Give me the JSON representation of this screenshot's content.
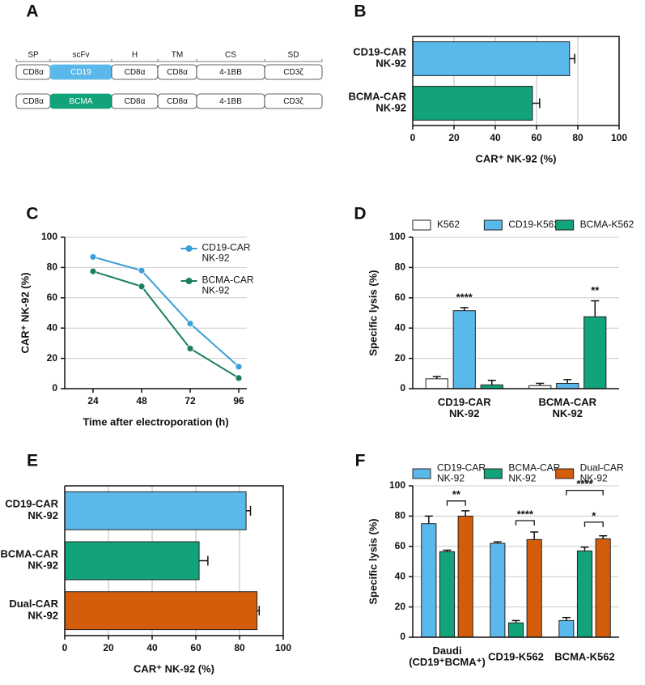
{
  "diagram": {
    "panel": "A",
    "headers": [
      "SP",
      "scFv",
      "H",
      "TM",
      "CS",
      "SD"
    ],
    "rows": [
      [
        "CD8α",
        "CD19",
        "CD8α",
        "CD8α",
        "4-1BB",
        "CD3ζ"
      ],
      [
        "CD8α",
        "BCMA",
        "CD8α",
        "CD8α",
        "4-1BB",
        "CD3ζ"
      ]
    ],
    "row_colors": [
      "#5bb8ea",
      "#13a37a"
    ]
  },
  "chart_data": [
    {
      "panel": "B",
      "type": "hbar",
      "categories": [
        "CD19-CAR\nNK-92",
        "BCMA-CAR\nNK-92"
      ],
      "values": [
        76,
        58
      ],
      "errors": [
        2.5,
        3.5
      ],
      "colors": [
        "#5bb8ea",
        "#13a37a"
      ],
      "x_label": "CAR⁺ NK-92 (%)",
      "xlim": [
        0,
        100
      ],
      "xticks": [
        0,
        20,
        40,
        60,
        80,
        100
      ],
      "grid": true
    },
    {
      "panel": "C",
      "type": "line",
      "x": [
        24,
        48,
        72,
        96
      ],
      "series": [
        {
          "name": "CD19-CAR\nNK-92",
          "color": "#3a9fd8",
          "values": [
            87,
            78,
            43,
            14.5
          ]
        },
        {
          "name": "BCMA-CAR\nNK-92",
          "color": "#1a7f5a",
          "values": [
            77.5,
            67.5,
            26.5,
            7
          ]
        }
      ],
      "x_label": "Time after electroporation (h)",
      "y_label": "CAR⁺ NK-92 (%)",
      "xlim": [
        10,
        100
      ],
      "xticks": [
        24,
        48,
        72,
        96
      ],
      "ylim": [
        0,
        100
      ],
      "yticks": [
        0,
        20,
        40,
        60,
        80,
        100
      ],
      "grid": true,
      "legend": "upper right"
    },
    {
      "panel": "D",
      "type": "vbar",
      "categories": [
        "CD19-CAR\nNK-92",
        "BCMA-CAR\nNK-92"
      ],
      "series": [
        {
          "name": "K562",
          "color": "#ffffff",
          "values": [
            6.5,
            2
          ],
          "errors": [
            1.5,
            1.5
          ]
        },
        {
          "name": "CD19-K562",
          "color": "#5bb8ea",
          "values": [
            51.5,
            3.5
          ],
          "errors": [
            2,
            2.5
          ]
        },
        {
          "name": "BCMA-K562",
          "color": "#13a37a",
          "values": [
            2.5,
            47.5
          ],
          "errors": [
            3,
            10.5
          ]
        }
      ],
      "y_label": "Specific lysis (%)",
      "ylim": [
        0,
        100
      ],
      "yticks": [
        0,
        20,
        40,
        60,
        80,
        100
      ],
      "grid": true,
      "legend": "top",
      "annotations": [
        "****",
        "**"
      ]
    },
    {
      "panel": "E",
      "type": "hbar",
      "categories": [
        "CD19-CAR\nNK-92",
        "BCMA-CAR\nNK-92",
        "Dual-CAR\nNK-92"
      ],
      "values": [
        83,
        61.5,
        88
      ],
      "errors": [
        2,
        4,
        1
      ],
      "colors": [
        "#5bb8ea",
        "#13a37a",
        "#d45d0c"
      ],
      "x_label": "CAR⁺ NK-92 (%)",
      "xlim": [
        0,
        100
      ],
      "xticks": [
        0,
        20,
        40,
        60,
        80,
        100
      ],
      "grid": true
    },
    {
      "panel": "F",
      "type": "vbar",
      "categories": [
        "Daudi\n(CD19⁺BCMA⁺)",
        "CD19-K562",
        "BCMA-K562"
      ],
      "series": [
        {
          "name": "CD19-CAR\nNK-92",
          "color": "#5bb8ea",
          "values": [
            75,
            62,
            11
          ],
          "errors": [
            5,
            1,
            2
          ]
        },
        {
          "name": "BCMA-CAR\nNK-92",
          "color": "#13a37a",
          "values": [
            56.5,
            9.5,
            57
          ],
          "errors": [
            1,
            1.5,
            2.5
          ]
        },
        {
          "name": "Dual-CAR\nNK-92",
          "color": "#d45d0c",
          "values": [
            80,
            64.5,
            65
          ],
          "errors": [
            3.5,
            5,
            2
          ]
        }
      ],
      "y_label": "Specific lysis (%)",
      "ylim": [
        0,
        100
      ],
      "yticks": [
        0,
        20,
        40,
        60,
        80,
        100
      ],
      "grid": true,
      "legend": "top",
      "annotations": [
        "**",
        "****",
        "****",
        "*"
      ]
    }
  ]
}
